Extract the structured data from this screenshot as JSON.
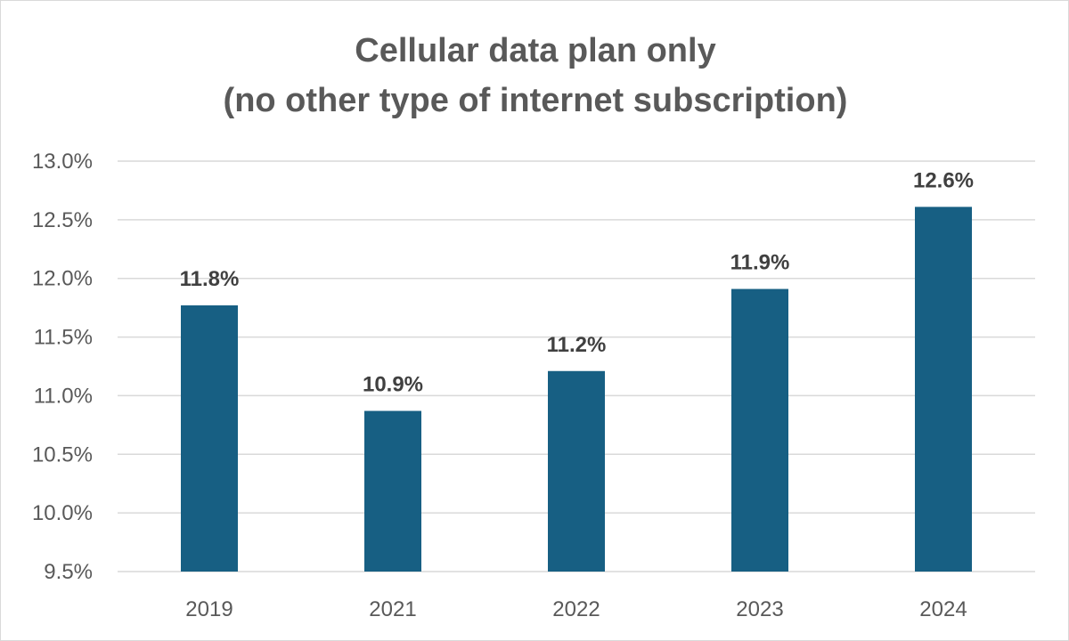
{
  "chart_data": {
    "type": "bar",
    "title_lines": [
      "Cellular data plan only",
      "(no other type of internet subscription)"
    ],
    "categories": [
      "2019",
      "2021",
      "2022",
      "2023",
      "2024"
    ],
    "values": [
      11.77,
      10.87,
      11.21,
      11.91,
      12.61
    ],
    "data_labels": [
      "11.8%",
      "10.9%",
      "11.2%",
      "11.9%",
      "12.6%"
    ],
    "y_ticks": [
      "9.5%",
      "10.0%",
      "10.5%",
      "11.0%",
      "11.5%",
      "12.0%",
      "12.5%",
      "13.0%"
    ],
    "ylim": [
      9.5,
      13.0
    ],
    "xlabel": "",
    "ylabel": "",
    "grid": true,
    "legend": "none",
    "bar_color": "#175f83",
    "grid_color": "#d9d9d9"
  }
}
